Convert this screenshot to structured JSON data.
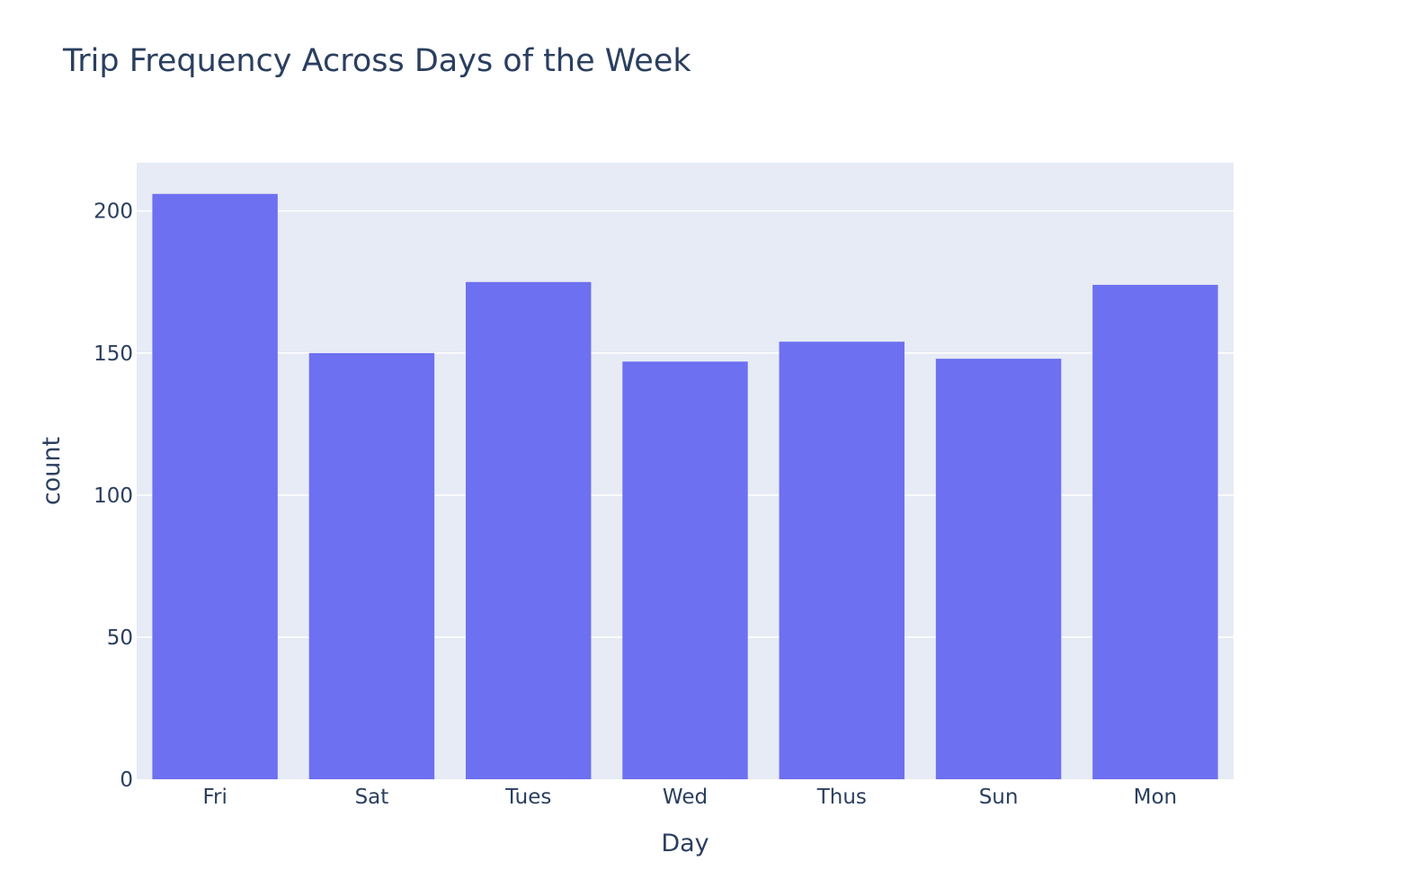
{
  "chart_data": {
    "type": "bar",
    "title": "Trip Frequency Across Days of the Week",
    "xlabel": "Day",
    "ylabel": "count",
    "categories": [
      "Fri",
      "Sat",
      "Tues",
      "Wed",
      "Thus",
      "Sun",
      "Mon"
    ],
    "values": [
      206,
      150,
      175,
      147,
      154,
      148,
      174
    ],
    "ylim": [
      0,
      217
    ],
    "yticks": [
      0,
      50,
      100,
      150,
      200
    ],
    "grid": true,
    "legend": "none",
    "colors": {
      "bar": "#6d70f0",
      "plot_background": "#e6ebf5",
      "gridline": "#ffffff",
      "text": "#2a3f5f"
    }
  }
}
